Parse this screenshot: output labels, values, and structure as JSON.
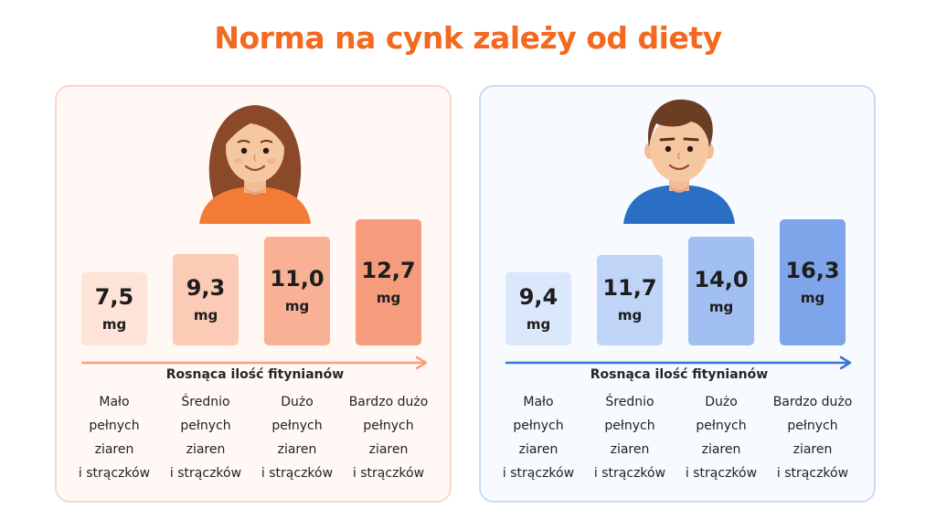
{
  "title": "Norma na cynk zależy od diety",
  "colors": {
    "title": "#f2691f",
    "female_bars": [
      "#fde3d8",
      "#fbcbb6",
      "#f8b195",
      "#f59c7c"
    ],
    "female_arrow": "#f7a07f",
    "male_bars": [
      "#dbe7fb",
      "#bfd4f7",
      "#a2bff2",
      "#7ea4ea"
    ],
    "male_arrow": "#3d72d6",
    "female_shirt": "#f47b36",
    "male_shirt": "#2a6fc4"
  },
  "chart_data": [
    {
      "type": "bar",
      "categories": [
        "Mało pełnych ziaren i strączków",
        "Średnio pełnych ziaren i strączków",
        "Dużo pełnych ziaren i strączków",
        "Bardzo dużo pełnych ziaren i strączków"
      ],
      "values": [
        7.5,
        9.3,
        11.0,
        12.7
      ],
      "value_labels": [
        "7,5",
        "9,3",
        "11,0",
        "12,7"
      ],
      "unit": "mg",
      "xlabel": "Rosnąca ilość fitynianów"
    },
    {
      "type": "bar",
      "categories": [
        "Mało pełnych ziaren i strączków",
        "Średnio pełnych ziaren i strączków",
        "Dużo pełnych ziaren i strączków",
        "Bardzo dużo pełnych ziaren i strączków"
      ],
      "values": [
        9.4,
        11.7,
        14.0,
        16.3
      ],
      "value_labels": [
        "9,4",
        "11,7",
        "14,0",
        "16,3"
      ],
      "unit": "mg",
      "xlabel": "Rosnąca ilość fitynianów"
    }
  ],
  "category_lines": [
    [
      "Mało",
      "pełnych",
      "ziaren",
      "i strączków"
    ],
    [
      "Średnio",
      "pełnych",
      "ziaren",
      "i strączków"
    ],
    [
      "Dużo",
      "pełnych",
      "ziaren",
      "i strączków"
    ],
    [
      "Bardzo dużo",
      "pełnych",
      "ziaren",
      "i strączków"
    ]
  ]
}
